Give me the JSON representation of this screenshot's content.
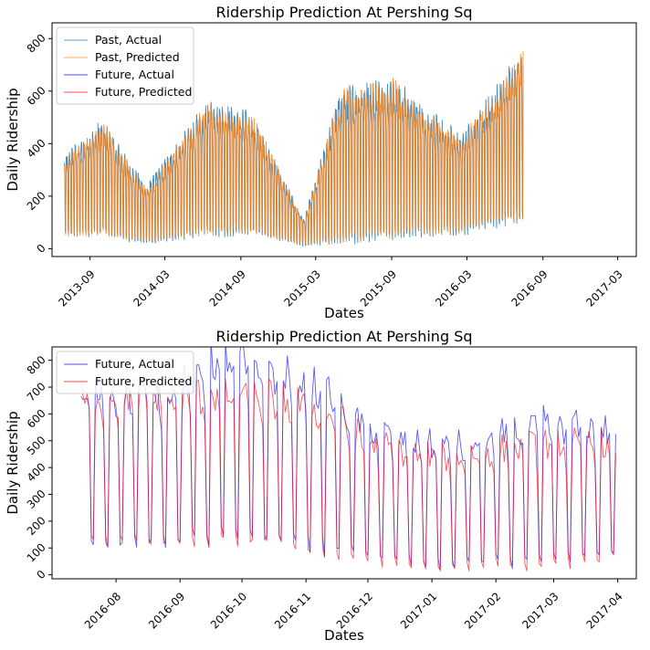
{
  "chart_data": [
    {
      "type": "line",
      "title": "Ridership Prediction At Pershing Sq",
      "xlabel": "Dates",
      "ylabel": "Daily Ridership",
      "x_ticks": [
        "2013-09",
        "2014-03",
        "2014-09",
        "2015-03",
        "2015-09",
        "2016-03",
        "2016-09",
        "2017-03"
      ],
      "y_ticks": [
        0,
        200,
        400,
        600,
        800
      ],
      "xlim": [
        "2013-06-01",
        "2017-04-15"
      ],
      "ylim": [
        -30,
        860
      ],
      "grid": false,
      "legend": "top-left",
      "series": [
        {
          "name": "Past, Actual",
          "color": "#1f77b4",
          "x_range": [
            "2013-07-01",
            "2016-07-15"
          ],
          "envelope_x": [
            "2013-07-01",
            "2013-10-01",
            "2014-01-15",
            "2014-06-15",
            "2014-10-01",
            "2015-02-01",
            "2015-05-01",
            "2015-09-01",
            "2015-12-01",
            "2016-02-15",
            "2016-07-15"
          ],
          "envelope_high": [
            330,
            450,
            220,
            520,
            470,
            100,
            560,
            600,
            480,
            400,
            700
          ],
          "envelope_low": [
            50,
            60,
            20,
            60,
            60,
            10,
            30,
            50,
            60,
            60,
            120
          ]
        },
        {
          "name": "Past, Predicted",
          "color": "#ff7f0e",
          "x_range": [
            "2013-07-01",
            "2016-07-15"
          ],
          "envelope_x": [
            "2013-07-01",
            "2013-10-01",
            "2014-01-15",
            "2014-06-15",
            "2014-10-01",
            "2015-02-01",
            "2015-05-01",
            "2015-09-01",
            "2015-12-01",
            "2016-02-15",
            "2016-07-15"
          ],
          "envelope_high": [
            320,
            440,
            210,
            510,
            460,
            95,
            550,
            590,
            470,
            390,
            690
          ],
          "envelope_low": [
            55,
            65,
            25,
            65,
            65,
            15,
            35,
            55,
            65,
            65,
            125
          ]
        },
        {
          "name": "Future, Actual",
          "color": "#0000ff"
        },
        {
          "name": "Future, Predicted",
          "color": "#ff0000"
        }
      ]
    },
    {
      "type": "line",
      "title": "Ridership Prediction At Pershing Sq",
      "xlabel": "Dates",
      "ylabel": "Daily Ridership",
      "x_ticks": [
        "2016-08",
        "2016-09",
        "2016-10",
        "2016-11",
        "2016-12",
        "2017-01",
        "2017-02",
        "2017-03",
        "2017-04"
      ],
      "y_ticks": [
        0,
        100,
        200,
        300,
        400,
        500,
        600,
        700,
        800
      ],
      "xlim": [
        "2016-07-01",
        "2017-04-10"
      ],
      "ylim": [
        -15,
        850
      ],
      "grid": false,
      "legend": "top-left",
      "series": [
        {
          "name": "Future, Actual",
          "color": "#0000ff",
          "x_range": [
            "2016-07-15",
            "2017-03-31"
          ],
          "envelope_x": [
            "2016-07-15",
            "2016-08-01",
            "2016-09-01",
            "2016-09-20",
            "2016-10-15",
            "2016-11-10",
            "2016-12-01",
            "2016-12-20",
            "2017-01-10",
            "2017-02-01",
            "2017-03-01",
            "2017-03-31"
          ],
          "envelope_high": [
            660,
            690,
            700,
            830,
            780,
            700,
            560,
            500,
            480,
            520,
            580,
            550
          ],
          "envelope_low": [
            110,
            100,
            120,
            130,
            120,
            90,
            60,
            40,
            30,
            40,
            40,
            80
          ]
        },
        {
          "name": "Future, Predicted",
          "color": "#ff0000",
          "x_range": [
            "2016-07-15",
            "2017-03-31"
          ],
          "envelope_x": [
            "2016-07-15",
            "2016-08-01",
            "2016-09-01",
            "2016-09-20",
            "2016-10-15",
            "2016-11-10",
            "2016-12-01",
            "2016-12-20",
            "2017-01-10",
            "2017-02-01",
            "2017-03-01",
            "2017-03-31"
          ],
          "envelope_high": [
            660,
            690,
            660,
            680,
            670,
            620,
            500,
            460,
            440,
            470,
            500,
            490
          ],
          "envelope_low": [
            120,
            110,
            110,
            120,
            110,
            70,
            50,
            30,
            20,
            30,
            25,
            60
          ]
        }
      ]
    }
  ]
}
